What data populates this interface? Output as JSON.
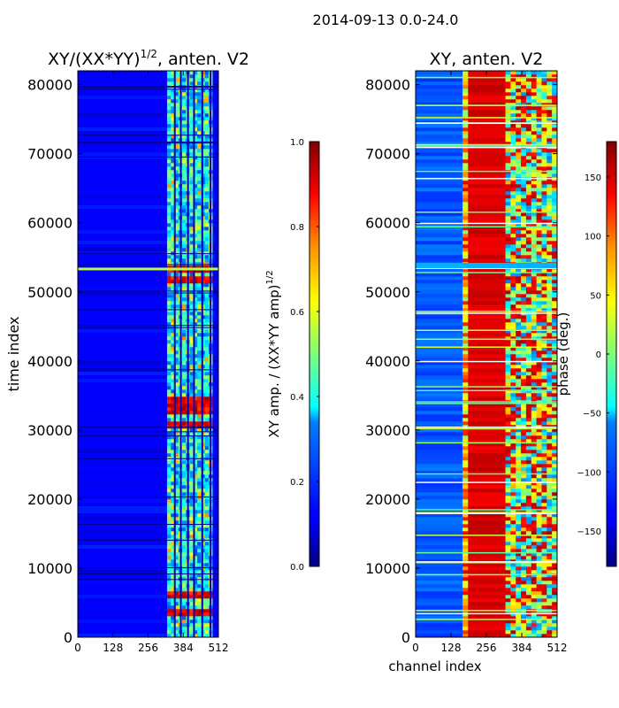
{
  "suptitle": "2014-09-13 0.0-24.0",
  "chart_data": [
    {
      "type": "heatmap",
      "title_prefix": "XY/(XX*YY)",
      "title_exp": "1/2",
      "title_suffix": ", anten. V2",
      "xlabel": "",
      "ylabel": "time index",
      "xlim": [
        0,
        512
      ],
      "ylim": [
        0,
        82000
      ],
      "xticks": [
        0,
        128,
        256,
        384,
        512
      ],
      "yticks": [
        0,
        10000,
        20000,
        30000,
        40000,
        50000,
        60000,
        70000,
        80000
      ],
      "colorbar": {
        "label_main": "XY amp. / (XX*YY amp)",
        "label_exp": "1/2",
        "vmin": 0.0,
        "vmax": 1.0,
        "ticks": [
          "0.0",
          "0.2",
          "0.4",
          "0.6",
          "0.8",
          "1.0"
        ],
        "colormap": "jet"
      },
      "background_value": 0.12,
      "signal_band_channels": [
        325,
        490
      ],
      "high_amplitude_rows": [
        3700,
        6200,
        30800,
        33000,
        34500,
        51800,
        53300
      ],
      "gap_channels": [
        350,
        372,
        398,
        420,
        450,
        480
      ]
    },
    {
      "type": "heatmap",
      "title": "XY, anten. V2",
      "xlabel": "channel index",
      "ylabel": "",
      "xlim": [
        0,
        512
      ],
      "ylim": [
        0,
        82000
      ],
      "xticks": [
        0,
        128,
        256,
        384,
        512
      ],
      "yticks": [
        0,
        10000,
        20000,
        30000,
        40000,
        50000,
        60000,
        70000,
        80000
      ],
      "colorbar": {
        "label": "phase (deg.)",
        "vmin": -180,
        "vmax": 180,
        "ticks": [
          "150",
          "100",
          "50",
          "0",
          "−50",
          "−100",
          "−150"
        ],
        "colormap": "jet"
      },
      "low_phase_channels": [
        0,
        170
      ],
      "high_phase_channels": [
        190,
        325
      ],
      "mixed_band_channels": [
        325,
        512
      ],
      "white_gap_rows": [
        3500,
        11000,
        18000,
        22500,
        30500,
        40000,
        47000,
        53500,
        60000,
        66500,
        71000,
        74500
      ]
    }
  ]
}
